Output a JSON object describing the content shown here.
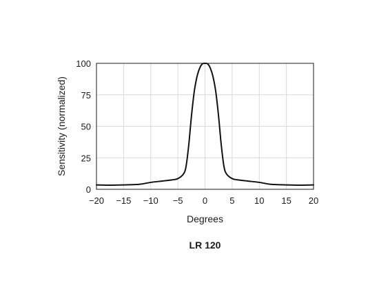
{
  "chart_data": {
    "type": "line",
    "title": "",
    "caption": "LR 120",
    "xlabel": "Degrees",
    "ylabel": "Sensitivity (normalized)",
    "xlim": [
      -20,
      20
    ],
    "ylim": [
      0,
      100
    ],
    "xticks": [
      -20,
      -15,
      -10,
      -5,
      0,
      5,
      10,
      15,
      20
    ],
    "yticks": [
      0,
      25,
      50,
      75,
      100
    ],
    "xtick_labels": [
      "−20",
      "−15",
      "−10",
      "−5",
      "0",
      "5",
      "10",
      "15",
      "20"
    ],
    "ytick_labels": [
      "0",
      "25",
      "50",
      "75",
      "100"
    ],
    "grid": true,
    "line_color": "#111111",
    "series": [
      {
        "x": [
          -20,
          -17,
          -14,
          -12,
          -10,
          -8,
          -6,
          -5,
          -4,
          -3.5,
          -3,
          -2.5,
          -2,
          -1.5,
          -1,
          -0.5,
          0,
          0.5,
          1,
          1.5,
          2,
          2.5,
          3,
          3.5,
          4,
          5,
          6,
          8,
          10,
          12,
          14,
          17,
          20
        ],
        "y": [
          3.5,
          3.3,
          3.6,
          4.0,
          5.5,
          6.5,
          7.5,
          8.5,
          12,
          18,
          35,
          58,
          77,
          89,
          96,
          99.5,
          100,
          99.5,
          96,
          89,
          77,
          58,
          35,
          18,
          12,
          8.5,
          7.5,
          6.5,
          5.5,
          4.0,
          3.6,
          3.3,
          3.5
        ]
      }
    ]
  }
}
